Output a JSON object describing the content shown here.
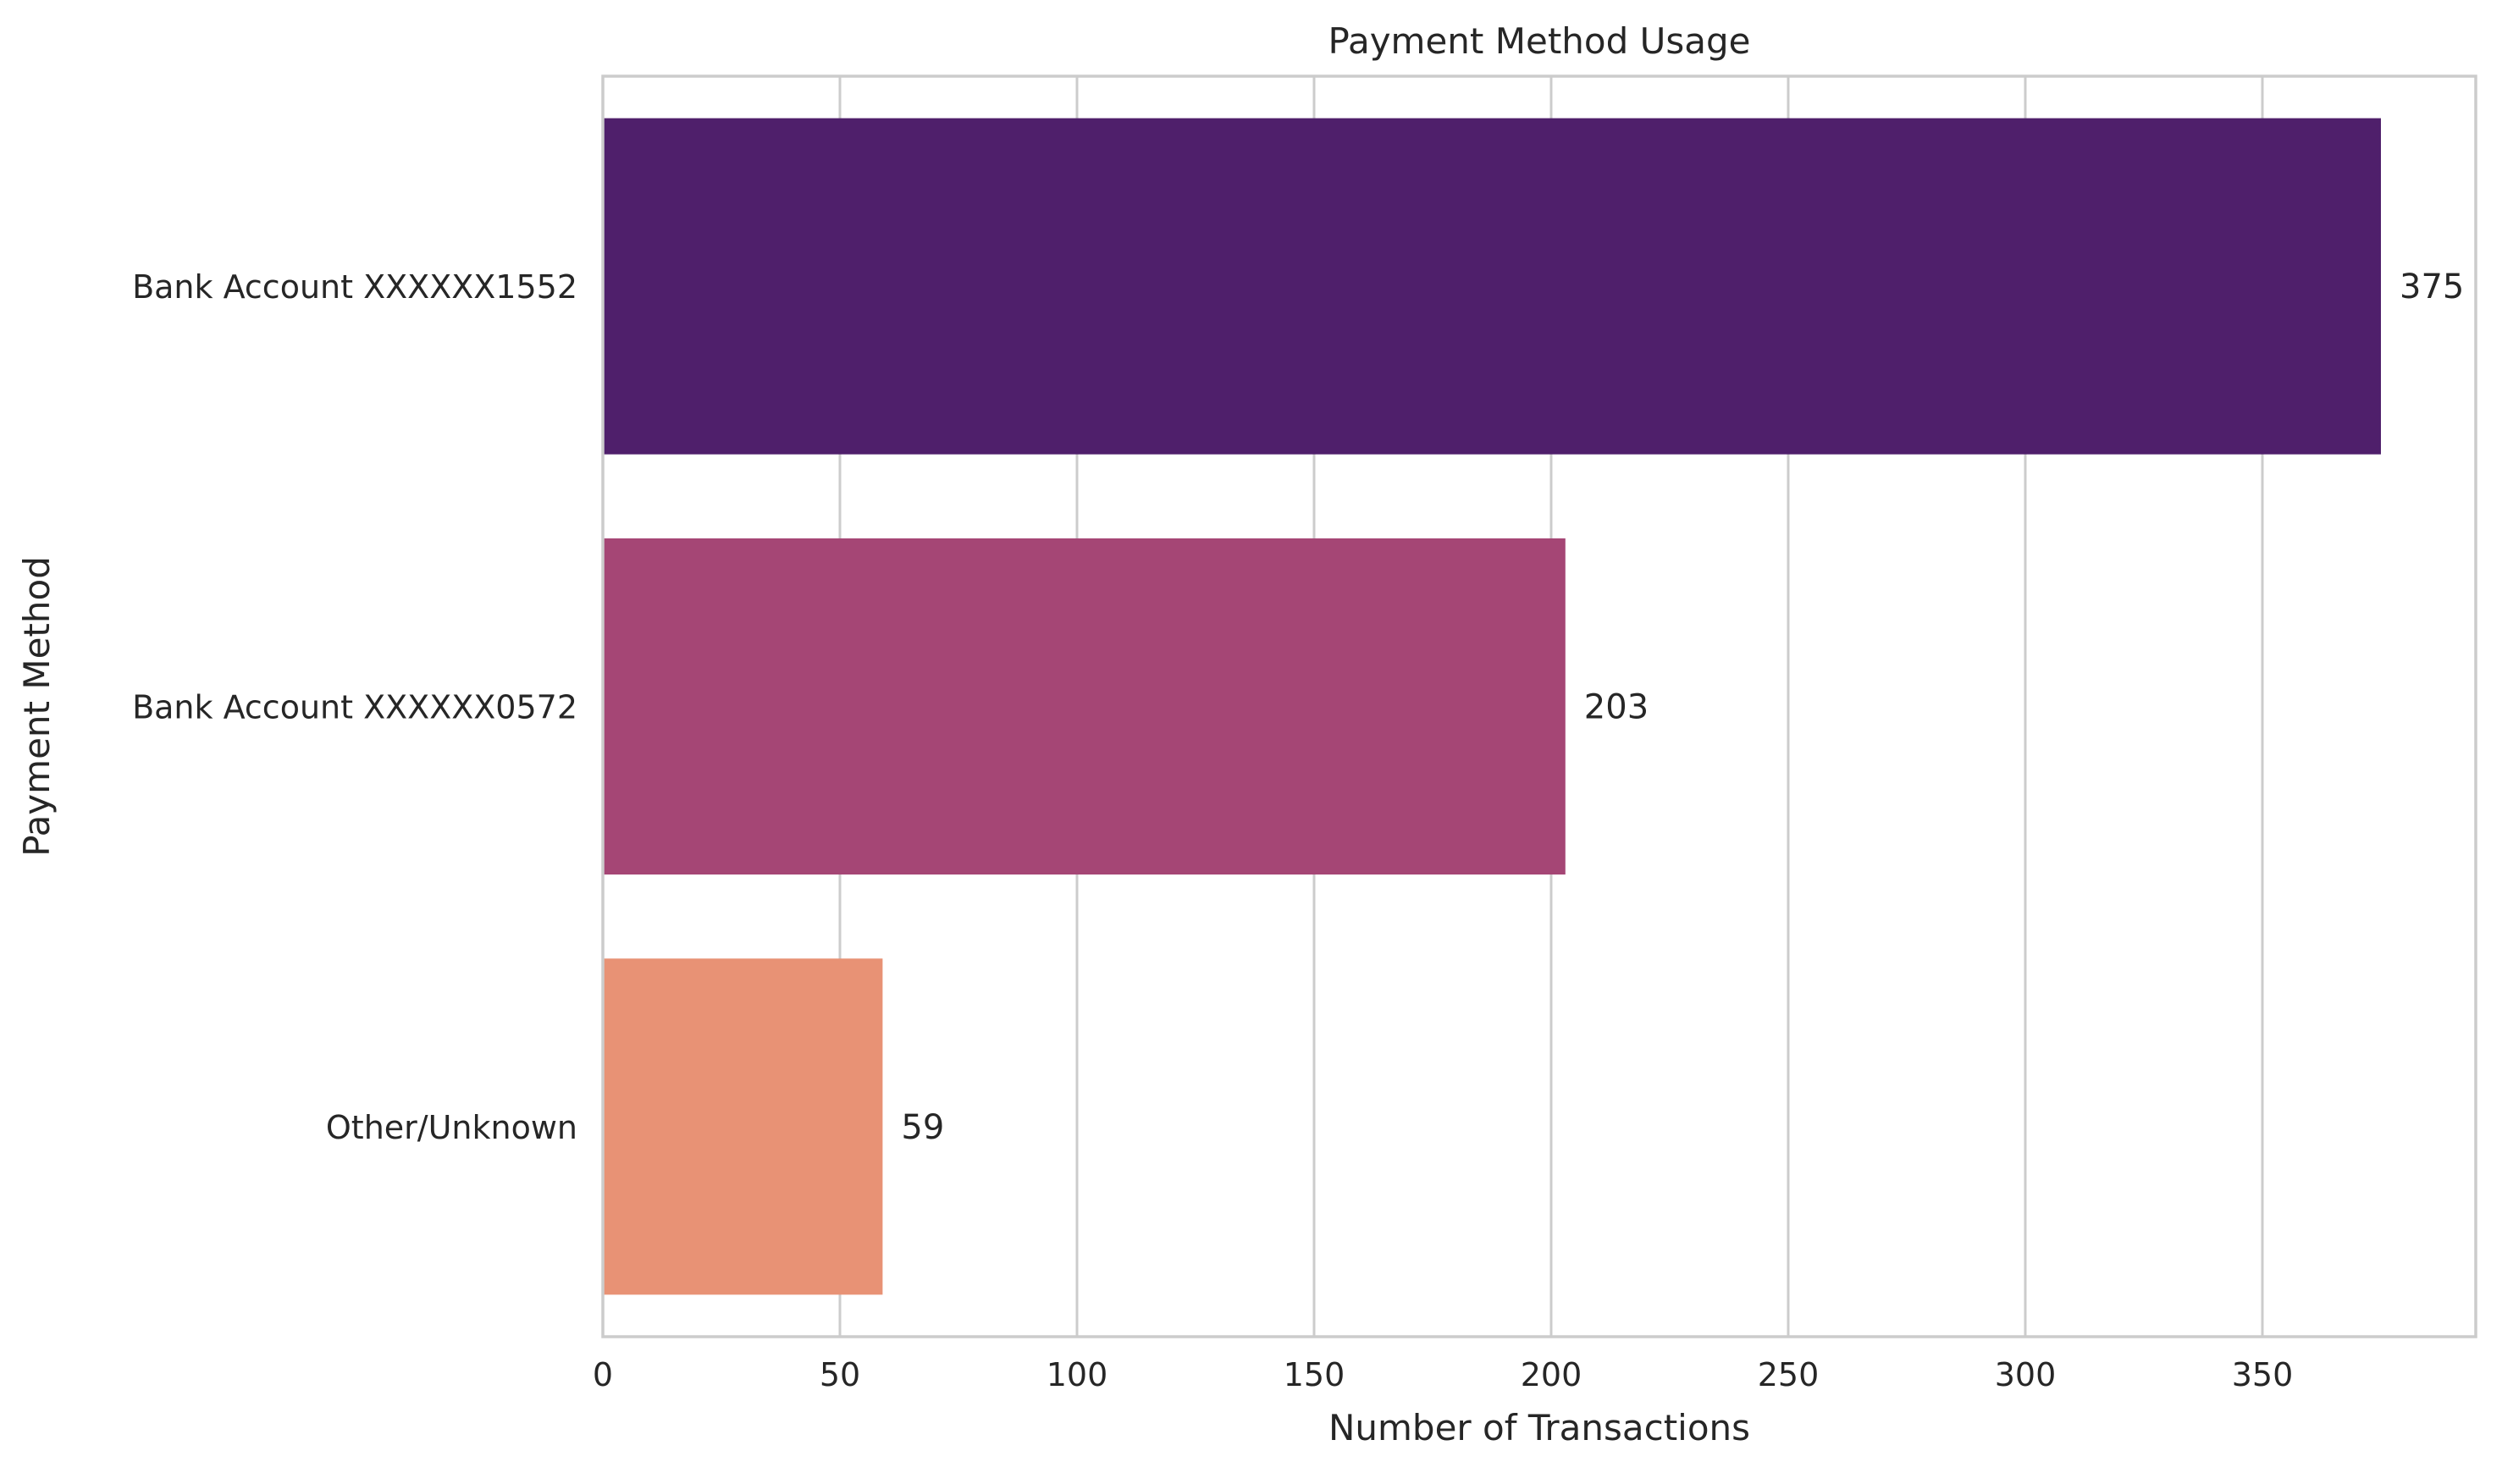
{
  "chart_data": {
    "type": "bar",
    "orientation": "horizontal",
    "title": "Payment Method Usage",
    "xlabel": "Number of Transactions",
    "ylabel": "Payment Method",
    "categories": [
      "Bank Account XXXXXX1552",
      "Bank Account XXXXXX0572",
      "Other/Unknown"
    ],
    "values": [
      375,
      203,
      59
    ],
    "colors": [
      "#4f1f6b",
      "#a54675",
      "#e89275"
    ],
    "xlim": [
      0,
      395
    ],
    "xticks": [
      0,
      50,
      100,
      150,
      200,
      250,
      300,
      350
    ],
    "xtick_labels": [
      "0",
      "50",
      "100",
      "150",
      "200",
      "250",
      "300",
      "350"
    ],
    "data_labels": [
      "375",
      "203",
      "59"
    ],
    "grid": true,
    "legend": "none"
  }
}
